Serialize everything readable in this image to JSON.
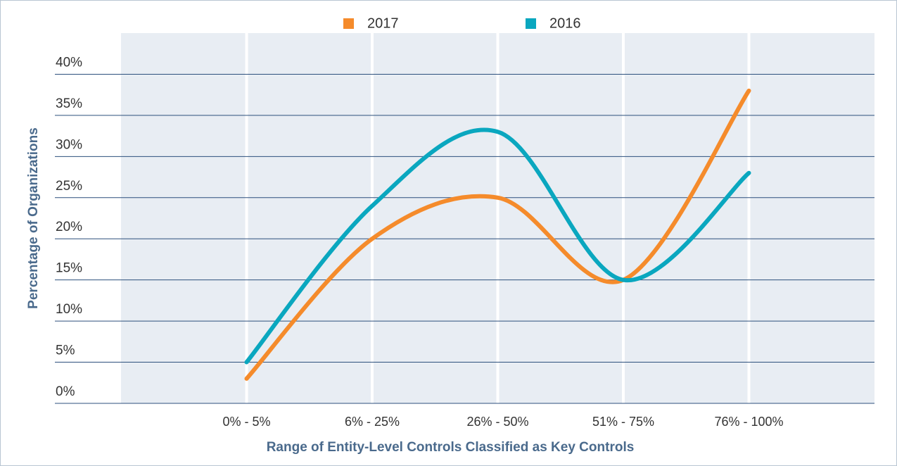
{
  "chart_data": {
    "type": "line",
    "x_label": "Range of Entity-Level Controls Classified as Key Controls",
    "y_label": "Percentage of Organizations",
    "categories": [
      "0% - 5%",
      "6% - 25%",
      "26% - 50%",
      "51% - 75%",
      "76% - 100%"
    ],
    "series": [
      {
        "name": "2017",
        "color": "#f58b2b",
        "values": [
          3,
          20,
          25,
          15,
          38
        ]
      },
      {
        "name": "2016",
        "color": "#0aa7bf",
        "values": [
          5,
          24,
          33,
          15,
          28
        ]
      }
    ],
    "ylim": [
      0,
      45
    ],
    "yticks": [
      {
        "value": 0,
        "label": "0%"
      },
      {
        "value": 5,
        "label": "5%"
      },
      {
        "value": 10,
        "label": "10%"
      },
      {
        "value": 15,
        "label": "15%"
      },
      {
        "value": 20,
        "label": "20%"
      },
      {
        "value": 25,
        "label": "25%"
      },
      {
        "value": 30,
        "label": "30%"
      },
      {
        "value": 35,
        "label": "35%"
      },
      {
        "value": 40,
        "label": "40%"
      }
    ],
    "grid": true,
    "legend": "top"
  }
}
